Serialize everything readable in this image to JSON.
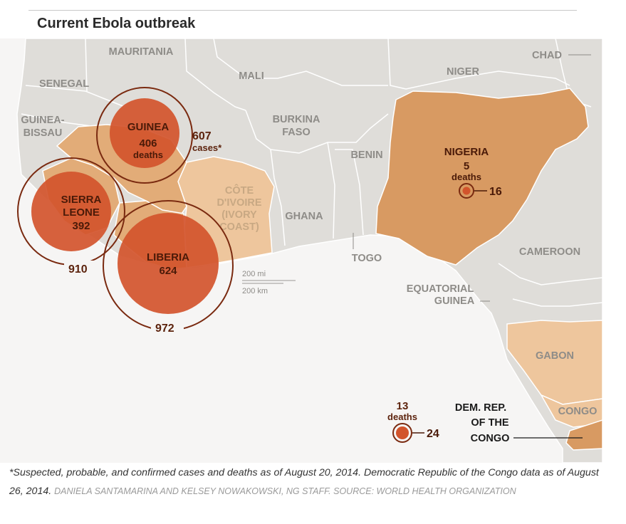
{
  "title": "Current Ebola outbreak",
  "colors": {
    "ocean": "#f6f5f4",
    "land": "#dfddd9",
    "border": "#ffffff",
    "affected_dark": "#d89a62",
    "affected_light": "#eec69d",
    "affected_mid": "#e2ac78",
    "circle_fill": "#d2542c",
    "ring": "#7a2a10",
    "label_dark": "#5c230d",
    "country_label": "#8e8c88"
  },
  "countries": {
    "mauritania": "MAURITANIA",
    "mali": "MALI",
    "niger": "NIGER",
    "chad": "CHAD",
    "senegal": "SENEGAL",
    "guinea_bissau": "GUINEA-BISSAU",
    "guinea_bissau_l1": "GUINEA-",
    "guinea_bissau_l2": "BISSAU",
    "burkina_l1": "BURKINA",
    "burkina_l2": "FASO",
    "benin": "BENIN",
    "togo": "TOGO",
    "ghana": "GHANA",
    "cote_l1": "CÔTE",
    "cote_l2": "D'IVOIRE",
    "cote_l3": "(IVORY",
    "cote_l4": "COAST)",
    "cameroon": "CAMEROON",
    "eq_guinea_l1": "EQUATORIAL",
    "eq_guinea_l2": "GUINEA",
    "gabon": "GABON",
    "congo": "CONGO"
  },
  "outbreak": {
    "guinea": {
      "name": "GUINEA",
      "deaths": "406",
      "deaths_word": "deaths",
      "cases": "607",
      "cases_word": "cases*"
    },
    "sierra_leone": {
      "name_l1": "SIERRA",
      "name_l2": "LEONE",
      "deaths": "392",
      "cases": "910"
    },
    "liberia": {
      "name": "LIBERIA",
      "deaths": "624",
      "cases": "972"
    },
    "nigeria": {
      "name": "NIGERIA",
      "deaths": "5",
      "deaths_word": "deaths",
      "cases": "16"
    },
    "drc": {
      "name_l1": "DEM. REP.",
      "name_l2": "OF THE",
      "name_l3": "CONGO",
      "deaths": "13",
      "deaths_word": "deaths",
      "cases": "24"
    }
  },
  "scale": {
    "miles": "200 mi",
    "km": "200 km"
  },
  "caption": {
    "main": "*Suspected, probable, and confirmed cases and deaths as of August 20, 2014. Democratic Republic of the Congo data as of August 26, 2014.",
    "credit": "DANIELA SANTAMARINA AND KELSEY NOWAKOWSKI, NG STAFF. SOURCE: WORLD HEALTH ORGANIZATION"
  }
}
